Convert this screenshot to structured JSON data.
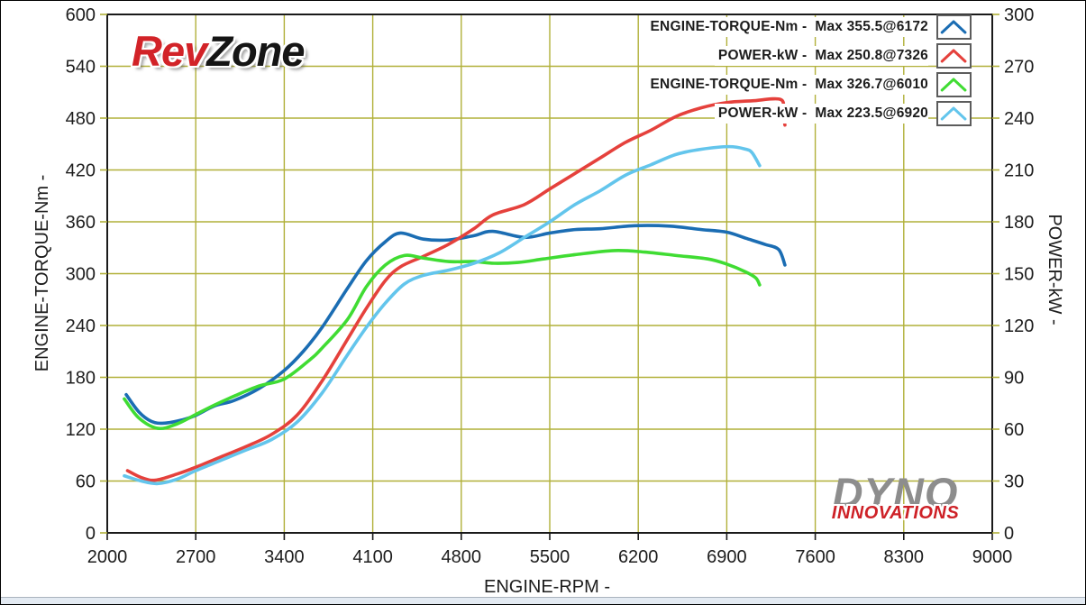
{
  "logos": {
    "revzone": {
      "part1": "Rev",
      "part2": "Zone",
      "part1_color": "#d22328",
      "part2_color": "#151515"
    },
    "dyno": {
      "line1": "DYNO",
      "line2": "INNOVATIONS",
      "line1_color": "#8d8d8d",
      "line2_color": "#ce2127"
    }
  },
  "chart_data": {
    "type": "line",
    "xlabel": "ENGINE-RPM -",
    "ylabel_left": "ENGINE-TORQUE-Nm -",
    "ylabel_right": "POWER-kW -",
    "x_range": [
      2000,
      9000
    ],
    "y_left_range": [
      0,
      600
    ],
    "y_right_range": [
      0,
      300
    ],
    "x_ticks": [
      2000,
      2700,
      3400,
      4100,
      4800,
      5500,
      6200,
      6900,
      7600,
      8300,
      9000
    ],
    "y_left_ticks": [
      0,
      60,
      120,
      180,
      240,
      300,
      360,
      420,
      480,
      540,
      600
    ],
    "y_right_ticks": [
      0,
      30,
      60,
      90,
      120,
      150,
      180,
      210,
      240,
      270,
      300
    ],
    "grid": true,
    "grid_color": "#b1b039",
    "axis_color": "#1a1a1a",
    "legend_position": "top-right",
    "series": [
      {
        "name": "ENGINE-TORQUE-Nm",
        "legend_label": "ENGINE-TORQUE-Nm -  Max 355.5@6172",
        "axis": "left",
        "color": "#1b6db3",
        "max": {
          "value": 355.5,
          "rpm": 6172
        },
        "points": [
          [
            2150,
            160
          ],
          [
            2250,
            140
          ],
          [
            2350,
            129
          ],
          [
            2450,
            127
          ],
          [
            2600,
            131
          ],
          [
            2700,
            136
          ],
          [
            2850,
            147
          ],
          [
            3000,
            153
          ],
          [
            3200,
            167
          ],
          [
            3400,
            188
          ],
          [
            3550,
            210
          ],
          [
            3700,
            238
          ],
          [
            3900,
            283
          ],
          [
            4050,
            315
          ],
          [
            4200,
            337
          ],
          [
            4320,
            347
          ],
          [
            4500,
            340
          ],
          [
            4700,
            339
          ],
          [
            4900,
            344
          ],
          [
            5050,
            349
          ],
          [
            5300,
            342
          ],
          [
            5500,
            347
          ],
          [
            5700,
            351
          ],
          [
            5900,
            352
          ],
          [
            6172,
            355.5
          ],
          [
            6450,
            355
          ],
          [
            6700,
            351
          ],
          [
            6900,
            348
          ],
          [
            7050,
            341
          ],
          [
            7200,
            334
          ],
          [
            7310,
            328
          ],
          [
            7360,
            310
          ]
        ]
      },
      {
        "name": "POWER-kW",
        "legend_label": "POWER-kW -  Max 250.8@7326",
        "axis": "right",
        "color": "#e5413c",
        "max": {
          "value": 250.8,
          "rpm": 7326
        },
        "points": [
          [
            2160,
            36
          ],
          [
            2270,
            32
          ],
          [
            2380,
            30.5
          ],
          [
            2550,
            34
          ],
          [
            2700,
            38
          ],
          [
            2900,
            44
          ],
          [
            3100,
            50
          ],
          [
            3300,
            57
          ],
          [
            3500,
            68
          ],
          [
            3700,
            88
          ],
          [
            3900,
            112
          ],
          [
            4050,
            130
          ],
          [
            4200,
            146
          ],
          [
            4320,
            154
          ],
          [
            4500,
            160
          ],
          [
            4700,
            167
          ],
          [
            4900,
            176
          ],
          [
            5050,
            184
          ],
          [
            5300,
            190
          ],
          [
            5500,
            199
          ],
          [
            5700,
            208
          ],
          [
            5900,
            217
          ],
          [
            6100,
            226
          ],
          [
            6300,
            233
          ],
          [
            6500,
            241
          ],
          [
            6700,
            246
          ],
          [
            6900,
            249
          ],
          [
            7100,
            250
          ],
          [
            7326,
            250.8
          ],
          [
            7345,
            243
          ],
          [
            7360,
            236
          ]
        ]
      },
      {
        "name": "ENGINE-TORQUE-Nm",
        "legend_label": "ENGINE-TORQUE-Nm -  Max 326.7@6010",
        "axis": "left",
        "color": "#40dc33",
        "max": {
          "value": 326.7,
          "rpm": 6010
        },
        "points": [
          [
            2135,
            155
          ],
          [
            2250,
            133
          ],
          [
            2400,
            121
          ],
          [
            2550,
            126
          ],
          [
            2700,
            137
          ],
          [
            2850,
            148
          ],
          [
            3000,
            158
          ],
          [
            3200,
            170
          ],
          [
            3400,
            178
          ],
          [
            3600,
            200
          ],
          [
            3700,
            214
          ],
          [
            3900,
            247
          ],
          [
            4050,
            285
          ],
          [
            4200,
            310
          ],
          [
            4350,
            321
          ],
          [
            4500,
            318
          ],
          [
            4700,
            314
          ],
          [
            4900,
            314
          ],
          [
            5060,
            312
          ],
          [
            5250,
            313
          ],
          [
            5450,
            317
          ],
          [
            5700,
            322
          ],
          [
            6010,
            326.7
          ],
          [
            6250,
            325
          ],
          [
            6500,
            321
          ],
          [
            6750,
            317
          ],
          [
            6900,
            311
          ],
          [
            7050,
            302
          ],
          [
            7130,
            295
          ],
          [
            7160,
            287
          ]
        ]
      },
      {
        "name": "POWER-kW",
        "legend_label": "POWER-kW -  Max 223.5@6920",
        "axis": "right",
        "color": "#63c5ec",
        "max": {
          "value": 223.5,
          "rpm": 6920
        },
        "points": [
          [
            2135,
            33
          ],
          [
            2270,
            30
          ],
          [
            2400,
            28.5
          ],
          [
            2550,
            31
          ],
          [
            2700,
            36
          ],
          [
            2900,
            42
          ],
          [
            3100,
            48
          ],
          [
            3300,
            54
          ],
          [
            3500,
            64
          ],
          [
            3700,
            81
          ],
          [
            3900,
            103
          ],
          [
            4050,
            119
          ],
          [
            4200,
            133
          ],
          [
            4350,
            144
          ],
          [
            4500,
            149
          ],
          [
            4700,
            152
          ],
          [
            4900,
            156
          ],
          [
            5100,
            162
          ],
          [
            5300,
            171
          ],
          [
            5500,
            180
          ],
          [
            5700,
            190
          ],
          [
            5900,
            198
          ],
          [
            6100,
            207
          ],
          [
            6300,
            213
          ],
          [
            6500,
            219
          ],
          [
            6700,
            222
          ],
          [
            6920,
            223.5
          ],
          [
            7050,
            222
          ],
          [
            7100,
            220
          ],
          [
            7160,
            212.5
          ]
        ]
      }
    ]
  }
}
